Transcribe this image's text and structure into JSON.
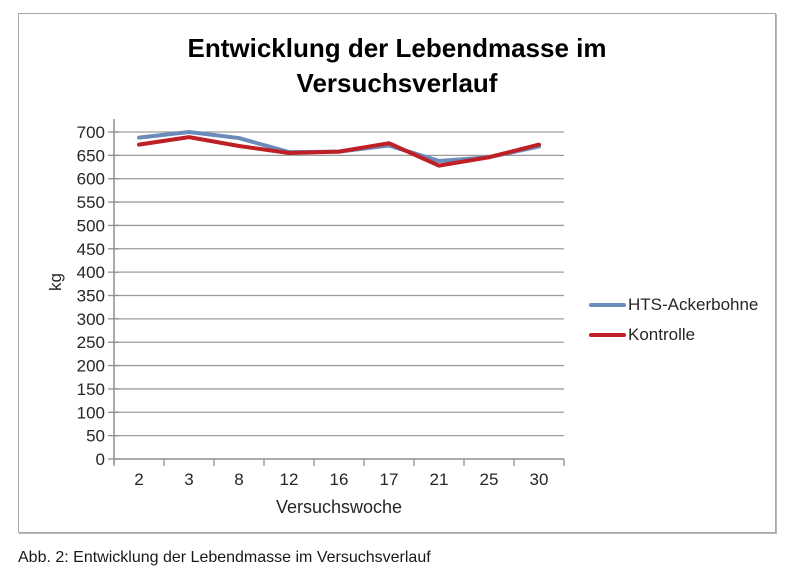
{
  "figure": {
    "caption": "Abb. 2: Entwicklung der Lebendmasse im Versuchsverlauf"
  },
  "chart_data": {
    "type": "line",
    "title": "Entwicklung der Lebendmasse im Versuchsverlauf",
    "categories": [
      "2",
      "3",
      "8",
      "12",
      "16",
      "17",
      "21",
      "25",
      "30"
    ],
    "series": [
      {
        "name": "HTS-Ackerbohne",
        "color": "#6b8cba",
        "values": [
          688,
          700,
          687,
          657,
          658,
          671,
          638,
          646,
          669
        ]
      },
      {
        "name": "Kontrolle",
        "color": "#be2026",
        "values": [
          673,
          689,
          670,
          655,
          658,
          676,
          628,
          646,
          673
        ]
      }
    ],
    "xlabel": "Versuchswoche",
    "ylabel": "kg",
    "ylim": [
      0,
      700
    ],
    "ytick_step": 50,
    "grid": true,
    "legend_position": "right",
    "grid_color": "#9d9d9d",
    "axis_color": "#8f8f8f",
    "tick_label_color": "#262626"
  }
}
